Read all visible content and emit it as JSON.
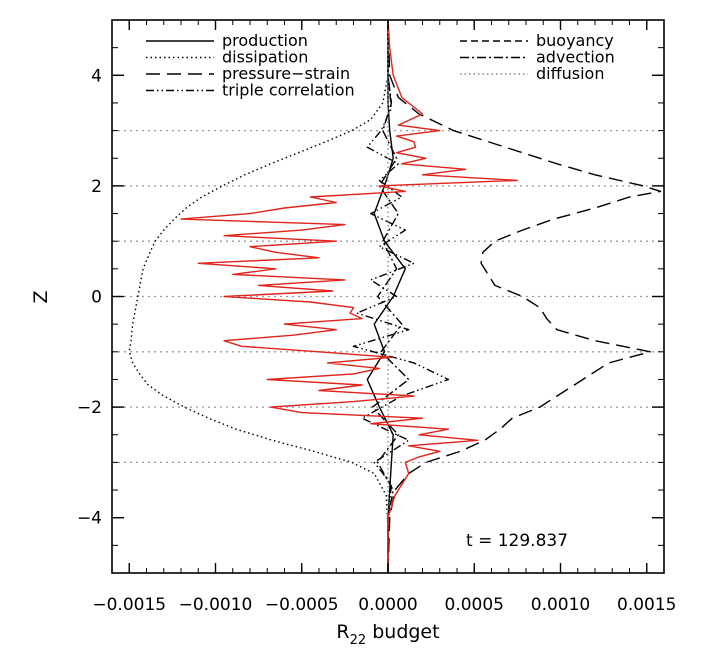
{
  "chart_data": {
    "type": "line",
    "title": "",
    "xlabel_main": "R",
    "xlabel_sub": "22",
    "xlabel_suffix": " budget",
    "ylabel": "Z",
    "xlim": [
      -0.0016,
      0.0016
    ],
    "ylim": [
      -5,
      5
    ],
    "xticks": [
      -0.0015,
      -0.001,
      -0.0005,
      0.0,
      0.0005,
      0.001,
      0.0015
    ],
    "xtick_labels": [
      "−0.0015",
      "−0.0010",
      "−0.0005",
      "0.0000",
      "0.0005",
      "0.0010",
      "0.0015"
    ],
    "yticks": [
      -4,
      -2,
      0,
      2,
      4
    ],
    "ytick_labels": [
      "−4",
      "−2",
      "0",
      "2",
      "4"
    ],
    "reference_lines_z": [
      -3,
      -2,
      -1,
      0,
      1,
      2,
      3
    ],
    "annotation": "t  =  129.837",
    "legend_left": [
      "production",
      "dissipation",
      "pressure−strain",
      "triple correlation"
    ],
    "legend_right": [
      "buoyancy",
      "advection",
      "diffusion"
    ],
    "series": [
      {
        "name": "production",
        "style": "solid",
        "color": "#000000",
        "z": [
          -5,
          -4.5,
          -4,
          -3.5,
          -3,
          -2.5,
          -2,
          -1.5,
          -1,
          -0.5,
          0,
          0.5,
          1,
          1.5,
          2,
          2.5,
          3,
          3.5,
          4,
          4.5,
          5
        ],
        "x": [
          0,
          0,
          0,
          1e-05,
          2e-05,
          3e-05,
          -5e-05,
          -0.00012,
          -2e-05,
          -8e-05,
          3e-05,
          0.0001,
          -2e-05,
          -8e-05,
          -2e-05,
          3e-05,
          1e-05,
          0,
          0,
          0,
          0
        ]
      },
      {
        "name": "dissipation",
        "style": "dotted",
        "color": "#000000",
        "z": [
          -5,
          -4.2,
          -3.6,
          -3.2,
          -3.0,
          -2.8,
          -2.6,
          -2.4,
          -2.2,
          -2.0,
          -1.8,
          -1.6,
          -1.4,
          -1.2,
          -1.0,
          -0.8,
          -0.5,
          0,
          0.5,
          0.8,
          1.0,
          1.2,
          1.4,
          1.6,
          1.8,
          2.0,
          2.2,
          2.4,
          2.6,
          2.8,
          3.0,
          3.2,
          3.5,
          4.0,
          5
        ],
        "x": [
          0,
          0,
          -1e-05,
          -8e-05,
          -0.00021,
          -0.00043,
          -0.00067,
          -0.00088,
          -0.00104,
          -0.00118,
          -0.0013,
          -0.00139,
          -0.00144,
          -0.00148,
          -0.0015,
          -0.00149,
          -0.00148,
          -0.00145,
          -0.00142,
          -0.00138,
          -0.00135,
          -0.0013,
          -0.00124,
          -0.00117,
          -0.00108,
          -0.00096,
          -0.00083,
          -0.00068,
          -0.00052,
          -0.00036,
          -0.00021,
          -0.0001,
          -3e-05,
          0,
          0
        ]
      },
      {
        "name": "pressure−strain",
        "style": "longdash",
        "color": "#000000",
        "z": [
          -5,
          -4,
          -3.5,
          -3.2,
          -3.0,
          -2.8,
          -2.6,
          -2.4,
          -2.2,
          -2.0,
          -1.8,
          -1.6,
          -1.4,
          -1.2,
          -1.0,
          -0.8,
          -0.6,
          -0.4,
          -0.2,
          0,
          0.2,
          0.4,
          0.6,
          0.8,
          1.0,
          1.2,
          1.4,
          1.6,
          1.8,
          1.9,
          2.0,
          2.2,
          2.4,
          2.6,
          2.8,
          3.0,
          3.3,
          3.6,
          4.0,
          5
        ],
        "x": [
          0,
          1e-05,
          4e-05,
          0.00012,
          0.00022,
          0.00042,
          0.00056,
          0.00065,
          0.00072,
          0.00088,
          0.00098,
          0.00108,
          0.00118,
          0.00128,
          0.00152,
          0.0012,
          0.00098,
          0.00092,
          0.00088,
          0.00078,
          0.00062,
          0.00058,
          0.00054,
          0.00055,
          0.00062,
          0.00078,
          0.00096,
          0.0012,
          0.0014,
          0.00158,
          0.00148,
          0.0012,
          0.00098,
          0.00078,
          0.00058,
          0.00038,
          0.00018,
          6e-05,
          1e-05,
          0
        ]
      },
      {
        "name": "triple correlation",
        "style": "dashdotdot",
        "color": "#000000",
        "z": [
          -5,
          -4,
          -3.4,
          -3.0,
          -2.6,
          -2.2,
          -1.8,
          -1.5,
          -1.2,
          -0.9,
          -0.6,
          -0.3,
          0,
          0.3,
          0.6,
          0.9,
          1.2,
          1.5,
          1.8,
          2.1,
          2.4,
          2.7,
          3.0,
          3.4,
          4.0,
          5
        ],
        "x": [
          0,
          0,
          2e-05,
          -8e-05,
          0.00012,
          -0.00015,
          8e-05,
          0.00035,
          0.00015,
          -0.0002,
          0.00012,
          -0.00018,
          5e-05,
          -0.0001,
          0.00015,
          -5e-05,
          0.0001,
          -0.0001,
          8e-05,
          -5e-05,
          6e-05,
          -0.00012,
          -4e-05,
          2e-05,
          0,
          0
        ]
      },
      {
        "name": "advection",
        "style": "dashdot",
        "color": "#000000",
        "z": [
          -5,
          -4,
          -3.5,
          -3.0,
          -2.5,
          -2.0,
          -1.5,
          -1.0,
          -0.5,
          0,
          0.5,
          1.0,
          1.5,
          2.0,
          2.5,
          3.0,
          3.5,
          4.0,
          5
        ],
        "x": [
          0,
          0,
          3e-05,
          -6e-05,
          6e-05,
          -9e-05,
          0.00012,
          -4e-05,
          8e-05,
          -6e-05,
          5e-05,
          -3e-05,
          6e-05,
          -5e-05,
          5e-05,
          -3e-05,
          2e-05,
          0,
          0
        ]
      },
      {
        "name": "diffusion",
        "style": "dotted-gray",
        "color": "#8c8c8c",
        "z": [
          -5,
          5
        ],
        "x": [
          0,
          0
        ]
      },
      {
        "name": "",
        "style": "solid-red",
        "color": "#e0231b",
        "z": [
          -5,
          -4.0,
          -3.6,
          -3.4,
          -3.2,
          -3.0,
          -2.9,
          -2.8,
          -2.7,
          -2.6,
          -2.5,
          -2.4,
          -2.3,
          -2.2,
          -2.1,
          -2.0,
          -1.9,
          -1.8,
          -1.7,
          -1.6,
          -1.5,
          -1.4,
          -1.3,
          -1.2,
          -1.1,
          -1.0,
          -0.9,
          -0.8,
          -0.7,
          -0.6,
          -0.5,
          -0.4,
          -0.3,
          -0.2,
          -0.1,
          0,
          0.1,
          0.2,
          0.3,
          0.4,
          0.5,
          0.6,
          0.7,
          0.8,
          0.9,
          1.0,
          1.1,
          1.2,
          1.3,
          1.4,
          1.5,
          1.6,
          1.7,
          1.8,
          1.9,
          2.0,
          2.1,
          2.2,
          2.3,
          2.4,
          2.5,
          2.6,
          2.7,
          2.8,
          2.9,
          3.0,
          3.1,
          3.3,
          3.6,
          4.0,
          4.5,
          5
        ],
        "x": [
          0,
          0,
          4e-05,
          8e-05,
          0.00012,
          0.0001,
          0.00018,
          0.0003,
          0.00012,
          0.00052,
          0.00018,
          0.00035,
          -0.0001,
          0.0002,
          -0.0005,
          -0.00068,
          -0.0002,
          0.00015,
          -0.0004,
          -0.00015,
          -0.0007,
          -0.0002,
          -5e-05,
          -0.00035,
          2e-05,
          -0.0004,
          -0.00085,
          -0.00095,
          -0.00055,
          -0.0003,
          -0.0006,
          -0.00015,
          -0.00022,
          -0.0002,
          -0.00045,
          -0.00095,
          -0.00032,
          -0.00075,
          -0.00025,
          -0.0009,
          -0.00065,
          -0.0011,
          -0.0004,
          -0.00065,
          -0.0008,
          -0.0003,
          -0.00095,
          -0.0005,
          -0.00025,
          -0.0012,
          -0.0008,
          -0.0006,
          -0.0003,
          -0.00045,
          0.0001,
          -5e-05,
          0.00075,
          0.0002,
          0.00045,
          8e-05,
          0.00022,
          5e-05,
          0.00016,
          0.00015,
          5e-05,
          0.0003,
          6e-05,
          0.0002,
          8e-05,
          3e-05,
          1e-05,
          0
        ]
      }
    ]
  }
}
